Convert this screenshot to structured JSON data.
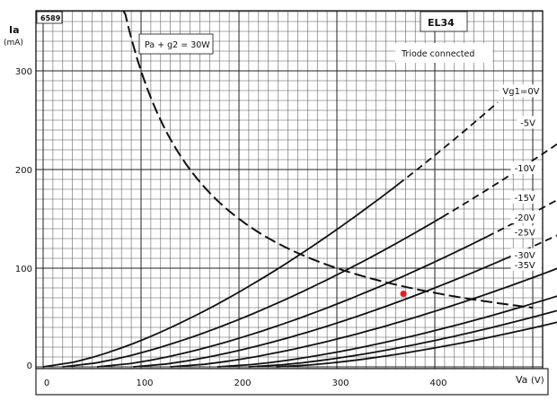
{
  "chart_data": {
    "type": "line",
    "figure_id": "6589",
    "tube": "EL34",
    "connection": "Triode connected",
    "power_limit_label": "Pa + g2 = 30W",
    "power_limit_watts": 30,
    "ylabel": "Ia",
    "yunit": "(mA)",
    "xlabel": "Va",
    "xunit": "(V)",
    "xlim": [
      0,
      480
    ],
    "ylim": [
      0,
      350
    ],
    "x_ticks": [
      0,
      100,
      200,
      300,
      400
    ],
    "y_ticks": [
      0,
      100,
      200,
      300
    ],
    "grid": true,
    "operating_point": {
      "x": 368,
      "y": 74,
      "color": "#e02020"
    },
    "series": [
      {
        "name": "Vg1 = 0V",
        "label": "Vg1=0V",
        "v0": 0,
        "k": 0.0268,
        "solid_to": 185,
        "dash_to": 268
      },
      {
        "name": "-5V",
        "label": "-5V",
        "v0": 20,
        "k": 0.0199,
        "solid_to": 152,
        "dash_to": 236
      },
      {
        "name": "-10V",
        "label": "-10V",
        "v0": 55,
        "k": 0.0166,
        "solid_to": 132,
        "dash_to": 190
      },
      {
        "name": "-15V",
        "label": "-15V",
        "v0": 92,
        "k": 0.0148,
        "solid_to": 118,
        "dash_to": 160
      },
      {
        "name": "-20V",
        "label": "-20V",
        "v0": 130,
        "k": 0.0127,
        "solid_to": 103,
        "dash_to": 140
      },
      {
        "name": "-25V",
        "label": "-25V",
        "v0": 178,
        "k": 0.0111,
        "solid_to": 90,
        "dash_to": 125
      },
      {
        "name": "-30V",
        "label": "-30V",
        "v0": 210,
        "k": 0.0102,
        "solid_to": 82,
        "dash_to": 102
      },
      {
        "name": "-35V",
        "label": "-35V",
        "v0": 238,
        "k": 0.0093,
        "solid_to": 75,
        "dash_to": 92
      }
    ]
  }
}
